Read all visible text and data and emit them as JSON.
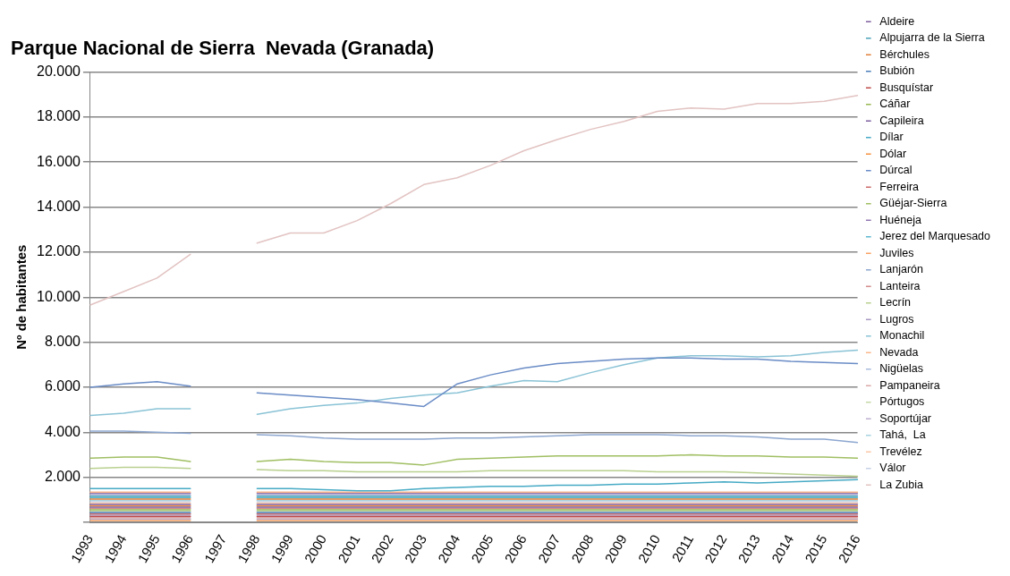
{
  "chart_data": {
    "type": "line",
    "title": "Parque Nacional de Sierra  Nevada (Granada)",
    "ylabel": "Nº de habitantes",
    "categories": [
      "1993",
      "1994",
      "1995",
      "1996",
      "1997",
      "1998",
      "1999",
      "2000",
      "2001",
      "2002",
      "2003",
      "2004",
      "2005",
      "2006",
      "2007",
      "2008",
      "2009",
      "2010",
      "2011",
      "2012",
      "2013",
      "2014",
      "2015",
      "2016"
    ],
    "ylim": [
      0,
      20000
    ],
    "yticks": [
      {
        "value": 0,
        "label": null
      },
      {
        "value": 2000,
        "label": "2.000"
      },
      {
        "value": 4000,
        "label": "4.000"
      },
      {
        "value": 6000,
        "label": "6.000"
      },
      {
        "value": 8000,
        "label": "8.000"
      },
      {
        "value": 10000,
        "label": "10.000"
      },
      {
        "value": 12000,
        "label": "12.000"
      },
      {
        "value": 14000,
        "label": "14.000"
      },
      {
        "value": 16000,
        "label": "16.000"
      },
      {
        "value": 18000,
        "label": "18.000"
      },
      {
        "value": 20000,
        "label": "20.000"
      }
    ],
    "grid": "y",
    "legend": "right",
    "marker": "none",
    "line_style": "solid",
    "series": [
      {
        "name": "Aldeire",
        "color": "#7f5fa0",
        "values": [
          800,
          800,
          800,
          800,
          null,
          800,
          800,
          800,
          800,
          800,
          800,
          800,
          800,
          800,
          800,
          800,
          800,
          800,
          800,
          800,
          800,
          800,
          800,
          800
        ]
      },
      {
        "name": "Alpujarra de la Sierra",
        "color": "#4aa3b8",
        "values": [
          1160,
          1160,
          1160,
          1160,
          null,
          1160,
          1160,
          1160,
          1160,
          1160,
          1160,
          1160,
          1160,
          1160,
          1160,
          1160,
          1160,
          1160,
          1160,
          1160,
          1160,
          1160,
          1160,
          1160
        ]
      },
      {
        "name": "Bérchules",
        "color": "#e0803a",
        "values": [
          1040,
          1040,
          1040,
          1040,
          null,
          1040,
          1040,
          1040,
          1040,
          1040,
          1040,
          1040,
          1040,
          1040,
          1040,
          1040,
          1040,
          1040,
          1040,
          1040,
          1040,
          1040,
          1040,
          1040
        ]
      },
      {
        "name": "Bubión",
        "color": "#4a7ebb",
        "values": [
          440,
          440,
          440,
          440,
          null,
          440,
          440,
          440,
          440,
          440,
          440,
          440,
          440,
          440,
          440,
          440,
          440,
          440,
          440,
          440,
          440,
          440,
          440,
          440
        ]
      },
      {
        "name": "Busquístar",
        "color": "#be4b48",
        "values": [
          260,
          260,
          260,
          260,
          null,
          260,
          260,
          260,
          260,
          260,
          260,
          260,
          260,
          260,
          260,
          260,
          260,
          260,
          260,
          260,
          260,
          260,
          260,
          260
        ]
      },
      {
        "name": "Cáñar",
        "color": "#98b954",
        "values": [
          560,
          560,
          560,
          560,
          null,
          560,
          560,
          560,
          560,
          560,
          560,
          560,
          560,
          560,
          560,
          560,
          560,
          560,
          560,
          560,
          560,
          560,
          560,
          560
        ]
      },
      {
        "name": "Capileira",
        "color": "#7d60a0",
        "values": [
          680,
          680,
          680,
          680,
          null,
          680,
          680,
          680,
          680,
          680,
          680,
          680,
          680,
          680,
          680,
          680,
          680,
          680,
          680,
          680,
          680,
          680,
          680,
          680
        ]
      },
      {
        "name": "Dílar",
        "color": "#46aac5",
        "values": [
          1500,
          1500,
          1500,
          1500,
          null,
          1500,
          1500,
          1450,
          1400,
          1400,
          1500,
          1550,
          1600,
          1600,
          1650,
          1650,
          1700,
          1700,
          1750,
          1800,
          1750,
          1800,
          1850,
          1900
        ]
      },
      {
        "name": "Dólar",
        "color": "#f69240",
        "values": [
          740,
          740,
          740,
          740,
          null,
          740,
          740,
          740,
          740,
          740,
          740,
          740,
          740,
          740,
          740,
          740,
          740,
          740,
          740,
          740,
          740,
          740,
          740,
          740
        ]
      },
      {
        "name": "Dúrcal",
        "color": "#6a8cc6",
        "values": [
          6000,
          6150,
          6250,
          6050,
          null,
          5750,
          5650,
          5550,
          5450,
          5300,
          5150,
          6150,
          6550,
          6850,
          7050,
          7150,
          7250,
          7300,
          7300,
          7250,
          7250,
          7150,
          7100,
          7050
        ]
      },
      {
        "name": "Ferreira",
        "color": "#cc6b69",
        "values": [
          380,
          380,
          380,
          380,
          null,
          380,
          380,
          380,
          380,
          380,
          380,
          380,
          380,
          380,
          380,
          380,
          380,
          380,
          380,
          380,
          380,
          380,
          380,
          380
        ]
      },
      {
        "name": "Güéjar-Sierra",
        "color": "#a0bf63",
        "values": [
          2850,
          2900,
          2900,
          2700,
          null,
          2700,
          2800,
          2700,
          2650,
          2650,
          2550,
          2800,
          2850,
          2900,
          2950,
          2950,
          2950,
          2950,
          3000,
          2950,
          2950,
          2900,
          2900,
          2850
        ]
      },
      {
        "name": "Huéneja",
        "color": "#9179b3",
        "values": [
          1280,
          1280,
          1280,
          1280,
          null,
          1280,
          1280,
          1280,
          1280,
          1280,
          1280,
          1280,
          1280,
          1280,
          1280,
          1280,
          1280,
          1280,
          1280,
          1280,
          1280,
          1280,
          1280,
          1280
        ]
      },
      {
        "name": "Jerez del Marquesado",
        "color": "#5fb8cf",
        "values": [
          1100,
          1100,
          1100,
          1100,
          null,
          1100,
          1100,
          1100,
          1100,
          1100,
          1100,
          1100,
          1100,
          1100,
          1100,
          1100,
          1100,
          1100,
          1100,
          1100,
          1100,
          1100,
          1100,
          1100
        ]
      },
      {
        "name": "Juviles",
        "color": "#f8a263",
        "values": [
          80,
          80,
          80,
          80,
          null,
          80,
          80,
          80,
          80,
          80,
          80,
          80,
          80,
          80,
          80,
          80,
          80,
          80,
          80,
          80,
          80,
          80,
          80,
          80
        ]
      },
      {
        "name": "Lanjarón",
        "color": "#8da7d0",
        "values": [
          4050,
          4050,
          4000,
          3950,
          null,
          3900,
          3850,
          3750,
          3700,
          3700,
          3700,
          3750,
          3750,
          3800,
          3850,
          3900,
          3900,
          3900,
          3850,
          3850,
          3800,
          3700,
          3700,
          3550
        ]
      },
      {
        "name": "Lanteira",
        "color": "#d38b8a",
        "values": [
          620,
          620,
          620,
          620,
          null,
          620,
          620,
          620,
          620,
          620,
          620,
          620,
          620,
          620,
          620,
          620,
          620,
          620,
          620,
          620,
          620,
          620,
          620,
          620
        ]
      },
      {
        "name": "Lecrín",
        "color": "#b9d08f",
        "values": [
          2400,
          2450,
          2450,
          2400,
          null,
          2350,
          2300,
          2300,
          2250,
          2250,
          2250,
          2250,
          2300,
          2300,
          2300,
          2300,
          2300,
          2250,
          2250,
          2250,
          2200,
          2150,
          2100,
          2050
        ]
      },
      {
        "name": "Lugros",
        "color": "#a897c2",
        "values": [
          320,
          320,
          320,
          320,
          null,
          320,
          320,
          320,
          320,
          320,
          320,
          320,
          320,
          320,
          320,
          320,
          320,
          320,
          320,
          320,
          320,
          320,
          320,
          320
        ]
      },
      {
        "name": "Monachil",
        "color": "#8ac3d6",
        "values": [
          4750,
          4850,
          5050,
          5050,
          null,
          4800,
          5050,
          5200,
          5300,
          5500,
          5650,
          5750,
          6050,
          6300,
          6250,
          6650,
          7000,
          7300,
          7400,
          7400,
          7350,
          7400,
          7550,
          7650
        ]
      },
      {
        "name": "Nevada",
        "color": "#fab68a",
        "values": [
          1340,
          1340,
          1340,
          1340,
          null,
          1340,
          1340,
          1340,
          1340,
          1340,
          1340,
          1340,
          1340,
          1340,
          1340,
          1340,
          1340,
          1340,
          1340,
          1340,
          1340,
          1340,
          1340,
          1340
        ]
      },
      {
        "name": "Nigüelas",
        "color": "#a8bbdd",
        "values": [
          1220,
          1220,
          1220,
          1220,
          null,
          1220,
          1220,
          1220,
          1220,
          1220,
          1220,
          1220,
          1220,
          1220,
          1220,
          1220,
          1220,
          1220,
          1220,
          1220,
          1220,
          1220,
          1220,
          1220
        ]
      },
      {
        "name": "Pampaneira",
        "color": "#dca9a8",
        "values": [
          200,
          200,
          200,
          200,
          null,
          200,
          200,
          200,
          200,
          200,
          200,
          200,
          200,
          200,
          200,
          200,
          200,
          200,
          200,
          200,
          200,
          200,
          200,
          200
        ]
      },
      {
        "name": "Pórtugos",
        "color": "#c5d9a8",
        "values": [
          500,
          500,
          500,
          500,
          null,
          500,
          500,
          500,
          500,
          500,
          500,
          500,
          500,
          500,
          500,
          500,
          500,
          500,
          500,
          500,
          500,
          500,
          500,
          500
        ]
      },
      {
        "name": "Soportújar",
        "color": "#bcb0d0",
        "values": [
          140,
          140,
          140,
          140,
          null,
          140,
          140,
          140,
          140,
          140,
          140,
          140,
          140,
          140,
          140,
          140,
          140,
          140,
          140,
          140,
          140,
          140,
          140,
          140
        ]
      },
      {
        "name": "Tahá,  La",
        "color": "#a8d3e0",
        "values": [
          980,
          980,
          980,
          980,
          null,
          980,
          980,
          980,
          980,
          980,
          980,
          980,
          980,
          980,
          980,
          980,
          980,
          980,
          980,
          980,
          980,
          980,
          980,
          980
        ]
      },
      {
        "name": "Trevélez",
        "color": "#fbc7a6",
        "values": [
          860,
          860,
          860,
          860,
          null,
          860,
          860,
          860,
          860,
          860,
          860,
          860,
          860,
          860,
          860,
          860,
          860,
          860,
          860,
          860,
          860,
          860,
          860,
          860
        ]
      },
      {
        "name": "Válor",
        "color": "#c6d1e6",
        "values": [
          920,
          920,
          920,
          920,
          null,
          920,
          920,
          920,
          920,
          920,
          920,
          920,
          920,
          920,
          920,
          920,
          920,
          920,
          920,
          920,
          920,
          920,
          920,
          920
        ]
      },
      {
        "name": "La Zubia",
        "color": "#e2c3c2",
        "values": [
          9650,
          10250,
          10850,
          11900,
          null,
          12400,
          12850,
          12850,
          13400,
          14150,
          15000,
          15300,
          15850,
          16500,
          17000,
          17450,
          17800,
          18250,
          18400,
          18350,
          18600,
          18600,
          18700,
          18950
        ]
      }
    ]
  }
}
